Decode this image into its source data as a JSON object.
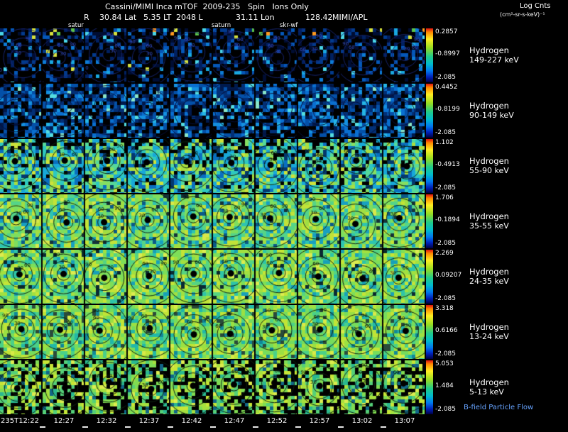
{
  "header": {
    "title": "Cassini/MIMI Inca mTOF  2009-235   Spin   Ions Only",
    "log_cnts_label": "Log Cnts",
    "log_cnts_units": "(cm²-sr-s-keV)⁻¹",
    "status_segments": [
      "R",
      "30.84 Lat",
      "5.35 LT",
      "2048 L",
      "31.11 Lon",
      "128.42",
      "MIMI/APL"
    ],
    "sub_labels": [
      "satur",
      "saturn",
      "skr-wf"
    ]
  },
  "contour_levels": [
    "30",
    "60",
    "90",
    "120",
    "150"
  ],
  "colorbar_gradient": [
    "#dd1111",
    "#ff8800",
    "#ffee22",
    "#99dd22",
    "#22cc88",
    "#00bbcc",
    "#0077ee",
    "#0022bb",
    "#000044"
  ],
  "rows": [
    {
      "species": "Hydrogen",
      "energy": "149-227 keV",
      "cb_max": "0.2857",
      "cb_mid": "-0.8997",
      "cb_min": "-2.085",
      "palette": [
        "#000000",
        "#000d33",
        "#012060",
        "#033a8c",
        "#0557b8",
        "#0d7bd6",
        "#19a8e0",
        "#49d6e8",
        "#d6e23c"
      ],
      "weights": [
        0.5,
        0.13,
        0.1,
        0.09,
        0.07,
        0.05,
        0.03,
        0.02,
        0.01
      ],
      "speck_colors": [
        "#d8e23c",
        "#5cc44a",
        "#ff9a1e"
      ],
      "top_specks": true,
      "dark_top": false,
      "dark_right": false,
      "fade_down": 0.5,
      "blob": false,
      "contour_stroke": "#16246e",
      "contour_text": "#3550c8"
    },
    {
      "species": "Hydrogen",
      "energy": "90-149 keV",
      "cb_max": "0.4452",
      "cb_mid": "-0.8199",
      "cb_min": "-2.085",
      "palette": [
        "#000000",
        "#001a4d",
        "#023077",
        "#0450a8",
        "#0a6fd0",
        "#1490e0",
        "#25b5e5",
        "#55dde0",
        "#8ae6c8"
      ],
      "weights": [
        0.22,
        0.14,
        0.16,
        0.15,
        0.12,
        0.09,
        0.06,
        0.04,
        0.02
      ],
      "top_specks": false,
      "dark_top": false,
      "dark_right": false,
      "fade_down": 0.3,
      "blob": false,
      "contour_stroke": "#06103a",
      "contour_text": "#0a1c55"
    },
    {
      "species": "Hydrogen",
      "energy": "55-90 keV",
      "cb_max": "1.102",
      "cb_mid": "-0.4913",
      "cb_min": "-2.085",
      "palette": [
        "#000000",
        "#04386e",
        "#0a6fc0",
        "#18a8d8",
        "#2ec8c0",
        "#55d89a",
        "#85de62",
        "#aade3f",
        "#cde23a"
      ],
      "weights": [
        0.1,
        0.08,
        0.12,
        0.16,
        0.16,
        0.14,
        0.12,
        0.08,
        0.04
      ],
      "top_specks": false,
      "dark_top": true,
      "dark_right": false,
      "fade_down": 0,
      "blob": true,
      "contour_stroke": "#0e2612",
      "contour_text": "#04120a"
    },
    {
      "species": "Hydrogen",
      "energy": "35-55 keV",
      "cb_max": "1.706",
      "cb_mid": "-0.1894",
      "cb_min": "-2.085",
      "palette": [
        "#0a5a88",
        "#18a0c0",
        "#2ec4b0",
        "#55d488",
        "#7ede5e",
        "#a0de42",
        "#c2e238",
        "#d8e84a",
        "#15333a"
      ],
      "weights": [
        0.05,
        0.09,
        0.13,
        0.17,
        0.19,
        0.16,
        0.12,
        0.05,
        0.04
      ],
      "top_specks": false,
      "dark_top": false,
      "dark_right": false,
      "fade_down": 0,
      "blob": true,
      "contour_stroke": "#0e2612",
      "contour_text": "#04120a"
    },
    {
      "species": "Hydrogen",
      "energy": "24-35 keV",
      "cb_max": "2.269",
      "cb_mid": "0.09207",
      "cb_min": "-2.085",
      "palette": [
        "#18a0b8",
        "#2ec4a8",
        "#55d482",
        "#7ede58",
        "#a2e040",
        "#c4e436",
        "#dcec50",
        "#0a2a33"
      ],
      "weights": [
        0.07,
        0.12,
        0.17,
        0.2,
        0.18,
        0.13,
        0.06,
        0.07
      ],
      "top_specks": false,
      "dark_top": false,
      "dark_right": false,
      "fade_down": 0,
      "blob": true,
      "contour_stroke": "#0e2612",
      "contour_text": "#04120a"
    },
    {
      "species": "Hydrogen",
      "energy": "13-24 keV",
      "cb_max": "3.318",
      "cb_mid": "0.6166",
      "cb_min": "-2.085",
      "palette": [
        "#22b8a8",
        "#4ad088",
        "#76dc5c",
        "#9ce042",
        "#c0e436",
        "#d8ea48",
        "#2a4a3a",
        "#108898"
      ],
      "weights": [
        0.1,
        0.15,
        0.2,
        0.19,
        0.14,
        0.07,
        0.08,
        0.07
      ],
      "top_specks": false,
      "dark_top": false,
      "dark_right": false,
      "fade_down": 0,
      "blob": true,
      "contour_stroke": "#0e2612",
      "contour_text": "#04120a"
    },
    {
      "species": "Hydrogen",
      "energy": "5-13 keV",
      "cb_max": "5.053",
      "cb_mid": "1.484",
      "cb_min": "-2.085",
      "palette": [
        "#2ab890",
        "#55d078",
        "#80dc52",
        "#a6e03e",
        "#c8e636",
        "#dcec4e",
        "#000000",
        "#116688"
      ],
      "weights": [
        0.12,
        0.16,
        0.18,
        0.16,
        0.12,
        0.06,
        0.12,
        0.08
      ],
      "top_specks": false,
      "dark_top": false,
      "dark_right": true,
      "fade_down": 0,
      "blob": true,
      "contour_stroke": "#0e2612",
      "contour_text": "#04120a"
    }
  ],
  "time_axis": [
    "235T12:22",
    "12:27",
    "12:32",
    "12:37",
    "12:42",
    "12:47",
    "12:52",
    "12:57",
    "13:02",
    "13:07"
  ],
  "footer": {
    "note": "B-field Particle Flow",
    "note_color": "#66a3ff"
  },
  "chart_data": {
    "type": "heatmap",
    "title": "Cassini/MIMI Inca mTOF 2009-235 Spin Ions Only",
    "description": "Seven stacked strips of INCA ion sky-map panels (10 time-step panels per strip) with per-strip rainbow colorbars of log counts and overlaid pitch-angle contours.",
    "colorbar_units": "Log Cnts (cm²-sr-s-keV)⁻¹",
    "x_ticks": [
      "235T12:22",
      "12:27",
      "12:32",
      "12:37",
      "12:42",
      "12:47",
      "12:52",
      "12:57",
      "13:02",
      "13:07"
    ],
    "contour_levels_deg": [
      30,
      60,
      90,
      120,
      150
    ],
    "ancillary": {
      "R_Lat": 30.84,
      "LT": 5.35,
      "L": 2048,
      "Lon": 31.11,
      "value": 128.42,
      "source": "MIMI/APL"
    },
    "series": [
      {
        "name": "Hydrogen 149-227 keV",
        "colorbar": {
          "max": 0.2857,
          "mid": -0.8997,
          "min": -2.085
        }
      },
      {
        "name": "Hydrogen 90-149 keV",
        "colorbar": {
          "max": 0.4452,
          "mid": -0.8199,
          "min": -2.085
        }
      },
      {
        "name": "Hydrogen 55-90 keV",
        "colorbar": {
          "max": 1.102,
          "mid": -0.4913,
          "min": -2.085
        }
      },
      {
        "name": "Hydrogen 35-55 keV",
        "colorbar": {
          "max": 1.706,
          "mid": -0.1894,
          "min": -2.085
        }
      },
      {
        "name": "Hydrogen 24-35 keV",
        "colorbar": {
          "max": 2.269,
          "mid": 0.09207,
          "min": -2.085
        }
      },
      {
        "name": "Hydrogen 13-24 keV",
        "colorbar": {
          "max": 3.318,
          "mid": 0.6166,
          "min": -2.085
        }
      },
      {
        "name": "Hydrogen 5-13 keV",
        "colorbar": {
          "max": 5.053,
          "mid": 1.484,
          "min": -2.085
        }
      }
    ],
    "legend_note": "B-field Particle Flow"
  }
}
